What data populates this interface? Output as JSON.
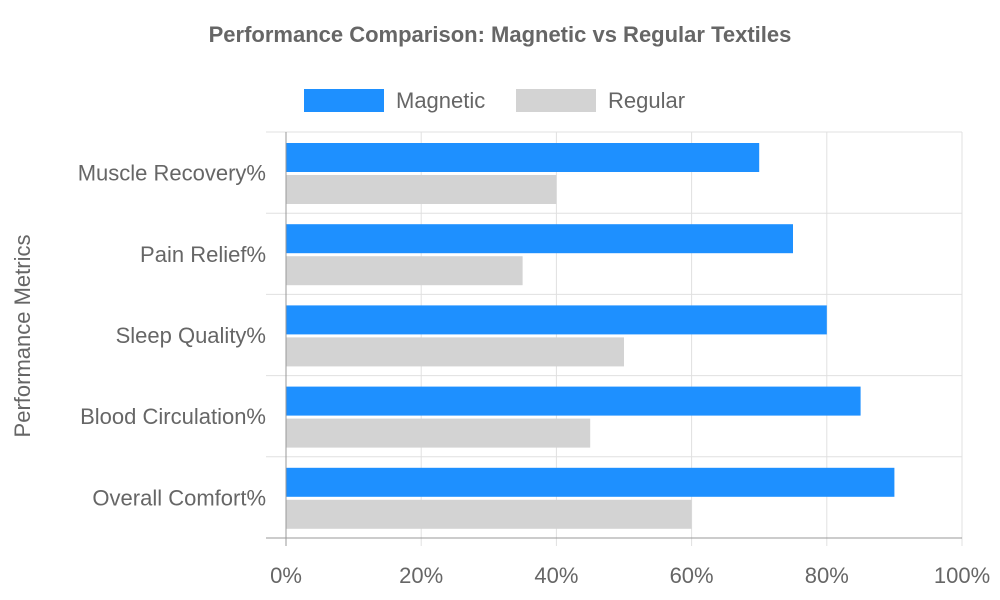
{
  "chart_data": {
    "type": "bar",
    "orientation": "horizontal",
    "title": "Performance Comparison: Magnetic vs Regular Textiles",
    "ylabel": "Performance Metrics",
    "xlabel": "",
    "categories": [
      "Muscle Recovery%",
      "Pain Relief%",
      "Sleep Quality%",
      "Blood Circulation%",
      "Overall Comfort%"
    ],
    "series": [
      {
        "name": "Magnetic",
        "color": "#1e90ff",
        "values": [
          70,
          75,
          80,
          85,
          90
        ]
      },
      {
        "name": "Regular",
        "color": "#d3d3d3",
        "values": [
          40,
          35,
          50,
          45,
          60
        ]
      }
    ],
    "xlim": [
      0,
      100
    ],
    "xticks": [
      0,
      20,
      40,
      60,
      80,
      100
    ],
    "xtick_labels": [
      "0%",
      "20%",
      "40%",
      "60%",
      "80%",
      "100%"
    ],
    "grid": true,
    "legend_position": "top-center"
  }
}
